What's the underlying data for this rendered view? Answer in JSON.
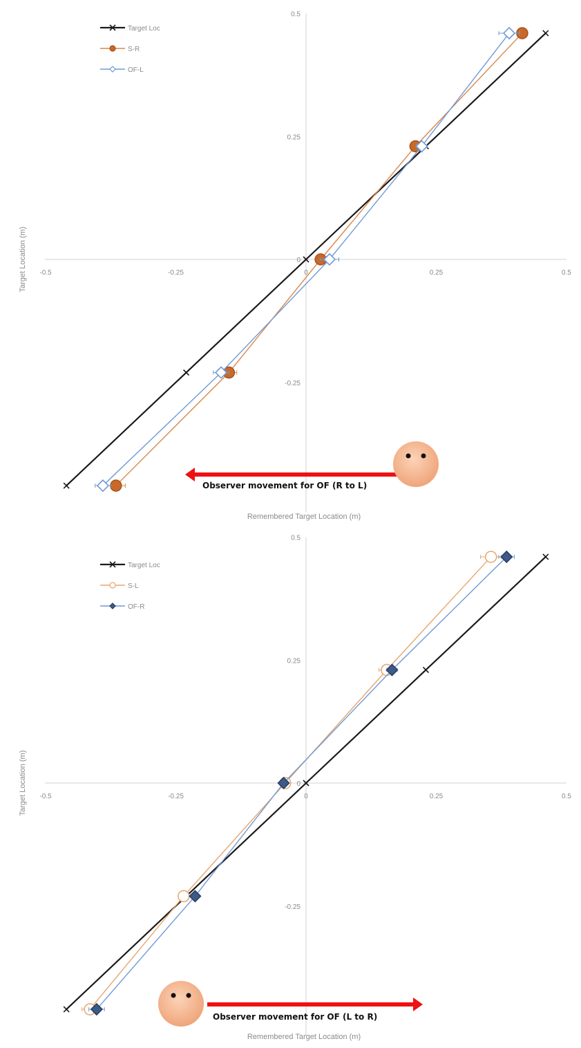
{
  "chart_data": [
    {
      "type": "line",
      "title": "",
      "xlabel": "Remembered Target Location (m)",
      "ylabel": "Target  Location (m)",
      "xlim": [
        -0.5,
        0.5
      ],
      "ylim": [
        -0.5,
        0.5
      ],
      "x_ticks": [
        "-0.5",
        "-0.25",
        "0",
        "0.25",
        "0.5"
      ],
      "y_ticks": [
        "0.5",
        "0.25",
        "0",
        "-0.25"
      ],
      "grid": false,
      "legend_position": "top-left",
      "series": [
        {
          "name": "Target Loc",
          "color": "#1a1a1a",
          "marker": "x",
          "x": [
            0.46,
            0.23,
            0.0,
            -0.23,
            -0.46
          ],
          "y": [
            0.46,
            0.23,
            0.0,
            -0.23,
            -0.46
          ]
        },
        {
          "name": "S-R",
          "color": "#d9874a",
          "fill": "#c8692a",
          "marker": "circle",
          "x": [
            0.415,
            0.21,
            0.028,
            -0.148,
            -0.365
          ],
          "y": [
            0.46,
            0.23,
            0.0,
            -0.23,
            -0.46
          ],
          "xerr": [
            0.01,
            0.01,
            0.01,
            0.015,
            0.018
          ]
        },
        {
          "name": "OF-L",
          "color": "#6f9ad6",
          "fill": "#ffffff",
          "marker": "diamond",
          "x": [
            0.39,
            0.222,
            0.045,
            -0.163,
            -0.39
          ],
          "y": [
            0.46,
            0.23,
            0.0,
            -0.23,
            -0.46
          ],
          "xerr": [
            0.02,
            0.01,
            0.018,
            0.015,
            0.015
          ]
        }
      ],
      "annotation": {
        "text": "Observer movement for OF (R to L)",
        "arrow_direction": "left"
      }
    },
    {
      "type": "line",
      "title": "",
      "xlabel": "Remembered Target Location (m)",
      "ylabel": "Target  Location (m)",
      "xlim": [
        -0.5,
        0.5
      ],
      "ylim": [
        -0.5,
        0.5
      ],
      "x_ticks": [
        "-0.5",
        "-0.25",
        "0",
        "0.25",
        "0.5"
      ],
      "y_ticks": [
        "0.5",
        "0.25",
        "0",
        "-0.25"
      ],
      "grid": false,
      "legend_position": "top-left",
      "series": [
        {
          "name": "Target Loc",
          "color": "#1a1a1a",
          "marker": "x",
          "x": [
            0.46,
            0.23,
            0.0,
            -0.23,
            -0.46
          ],
          "y": [
            0.46,
            0.23,
            0.0,
            -0.23,
            -0.46
          ]
        },
        {
          "name": "S-L",
          "color": "#e8a56e",
          "fill": "#ffffff",
          "marker": "circle",
          "x": [
            0.355,
            0.155,
            -0.04,
            -0.235,
            -0.415
          ],
          "y": [
            0.46,
            0.23,
            0.0,
            -0.23,
            -0.46
          ],
          "xerr": [
            0.02,
            0.015,
            0.008,
            0.01,
            0.015
          ]
        },
        {
          "name": "OF-R",
          "color": "#6f9ad6",
          "fill": "#3d5a8a",
          "marker": "diamond",
          "x": [
            0.385,
            0.165,
            -0.043,
            -0.213,
            -0.402
          ],
          "y": [
            0.46,
            0.23,
            0.0,
            -0.23,
            -0.46
          ],
          "xerr": [
            0.015,
            0.01,
            0.008,
            0.008,
            0.015
          ]
        }
      ],
      "annotation": {
        "text": "Observer movement for OF (L to R)",
        "arrow_direction": "right"
      }
    }
  ]
}
